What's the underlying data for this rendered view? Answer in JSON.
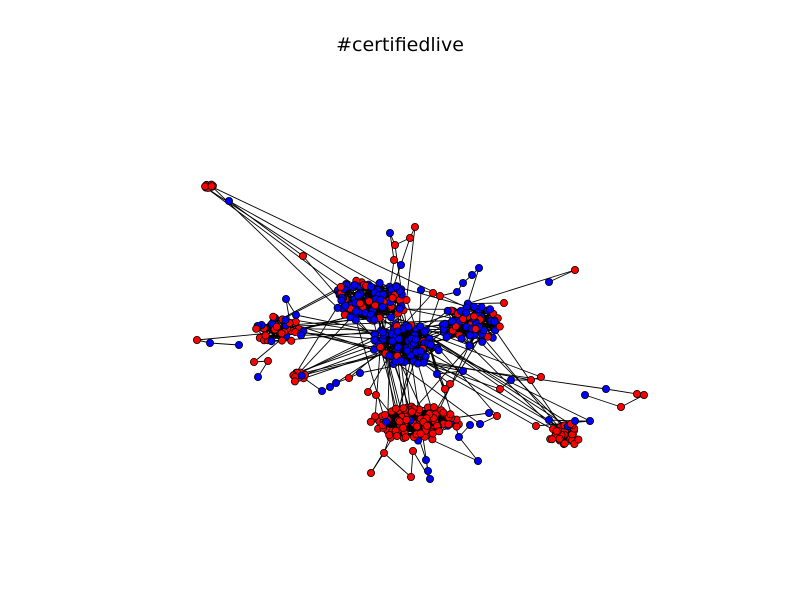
{
  "title": "#certifiedlive",
  "colors": {
    "group_a": "#ff0000",
    "group_b": "#0000ff",
    "edge": "#000000",
    "background": "#ffffff"
  },
  "legend": null,
  "axes_visible": false
}
